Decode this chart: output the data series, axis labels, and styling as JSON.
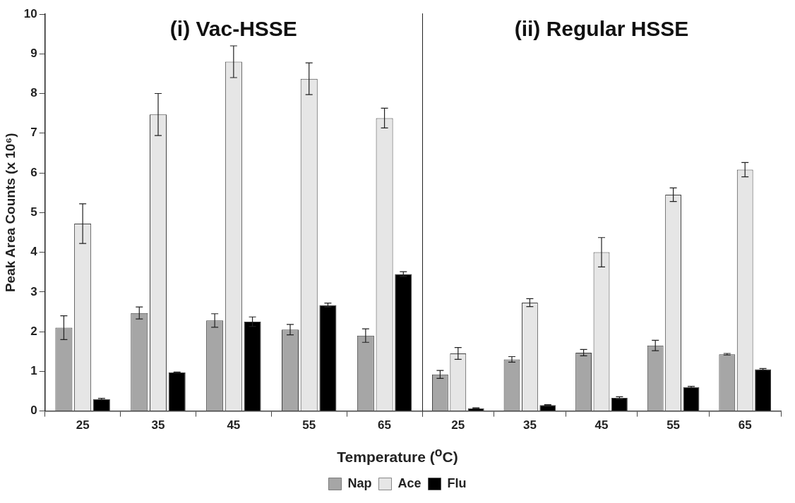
{
  "chart_data": [
    {
      "type": "bar",
      "title": "(i) Vac-HSSE",
      "ylabel": "Peak Area Counts (x 10⁶)",
      "xlabel": "Temperature ($^{o}$C)",
      "legend": "bottom",
      "grid": false,
      "categories": [
        "25",
        "35",
        "45",
        "55",
        "65"
      ],
      "ylim": [
        0,
        10
      ],
      "yticks": [
        0,
        1,
        2,
        3,
        4,
        5,
        6,
        7,
        8,
        9,
        10
      ],
      "series": [
        {
          "name": "Nap",
          "color": "#a6a6a6",
          "values": [
            2.1,
            2.47,
            2.28,
            2.05,
            1.9
          ],
          "errors": [
            0.3,
            0.15,
            0.17,
            0.13,
            0.17
          ]
        },
        {
          "name": "Ace",
          "color": "#e6e6e6",
          "values": [
            4.72,
            7.47,
            8.8,
            8.37,
            7.38
          ],
          "errors": [
            0.5,
            0.53,
            0.4,
            0.4,
            0.25
          ]
        },
        {
          "name": "Flu",
          "color": "#000000",
          "values": [
            0.3,
            0.97,
            2.25,
            2.67,
            3.45
          ],
          "errors": [
            0.02,
            0.01,
            0.12,
            0.05,
            0.06
          ]
        }
      ]
    },
    {
      "type": "bar",
      "title": "(ii) Regular HSSE",
      "grid": false,
      "tick_labels": "x",
      "categories": [
        "25",
        "35",
        "45",
        "55",
        "65"
      ],
      "ylim": [
        0,
        10
      ],
      "yticks": [
        0,
        1,
        2,
        3,
        4,
        5,
        6,
        7,
        8,
        9,
        10
      ],
      "series": [
        {
          "color": "#a6a6a6",
          "values": [
            0.92,
            1.3,
            1.47,
            1.65,
            1.43
          ],
          "errors": [
            0.1,
            0.07,
            0.08,
            0.13,
            0.02
          ]
        },
        {
          "color": "#e6e6e6",
          "values": [
            1.45,
            2.73,
            4.0,
            5.45,
            6.08
          ],
          "errors": [
            0.15,
            0.1,
            0.37,
            0.17,
            0.18
          ]
        },
        {
          "color": "#000000",
          "values": [
            0.07,
            0.15,
            0.33,
            0.6,
            1.05
          ],
          "errors": [
            0.01,
            0.01,
            0.03,
            0.02,
            0.02
          ]
        }
      ]
    }
  ]
}
